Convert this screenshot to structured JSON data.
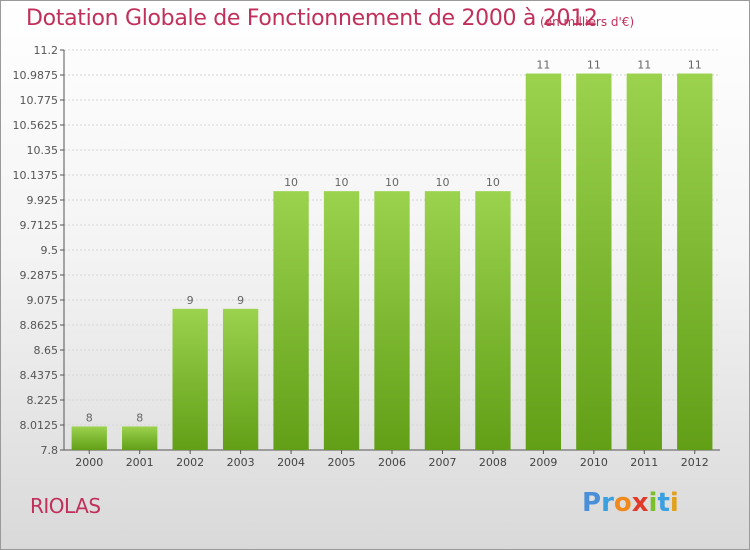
{
  "title": "Dotation Globale de Fonctionnement de 2000 à 2012",
  "subtitle": "(en milliers d'€)",
  "commune": "RIOLAS",
  "logo": {
    "letters": [
      "P",
      "r",
      "o",
      "x",
      "i",
      "t",
      "i"
    ],
    "colors": [
      "#4a8fd8",
      "#3aa0e0",
      "#f08a1c",
      "#e23a2a",
      "#7bbf2a",
      "#3aa0e0",
      "#e2a11c"
    ]
  },
  "colors": {
    "accent": "#c0305a",
    "bar": "#8cc63f",
    "bar_dark": "#5f9e16"
  },
  "chart_data": {
    "type": "bar",
    "categories": [
      "2000",
      "2001",
      "2002",
      "2003",
      "2004",
      "2005",
      "2006",
      "2007",
      "2008",
      "2009",
      "2010",
      "2011",
      "2012"
    ],
    "values": [
      8,
      8,
      9,
      9,
      10,
      10,
      10,
      10,
      10,
      11,
      11,
      11,
      11
    ],
    "data_labels": [
      "8",
      "8",
      "9",
      "9",
      "10",
      "10",
      "10",
      "10",
      "10",
      "11",
      "11",
      "11",
      "11"
    ],
    "yticks": [
      7.8,
      8.0125,
      8.225,
      8.4375,
      8.65,
      8.8625,
      9.075,
      9.2875,
      9.5,
      9.7125,
      9.925,
      10.1375,
      10.35,
      10.5625,
      10.775,
      10.9875,
      11.2
    ],
    "ytick_labels": [
      "7.8",
      "8.0125",
      "8.225",
      "8.4375",
      "8.65",
      "8.8625",
      "9.075",
      "9.2875",
      "9.5",
      "9.7125",
      "9.925",
      "10.1375",
      "10.35",
      "10.5625",
      "10.775",
      "10.9875",
      "11.2"
    ],
    "ylim": [
      7.8,
      11.2
    ],
    "grid": true,
    "xlabel": "",
    "ylabel": ""
  }
}
